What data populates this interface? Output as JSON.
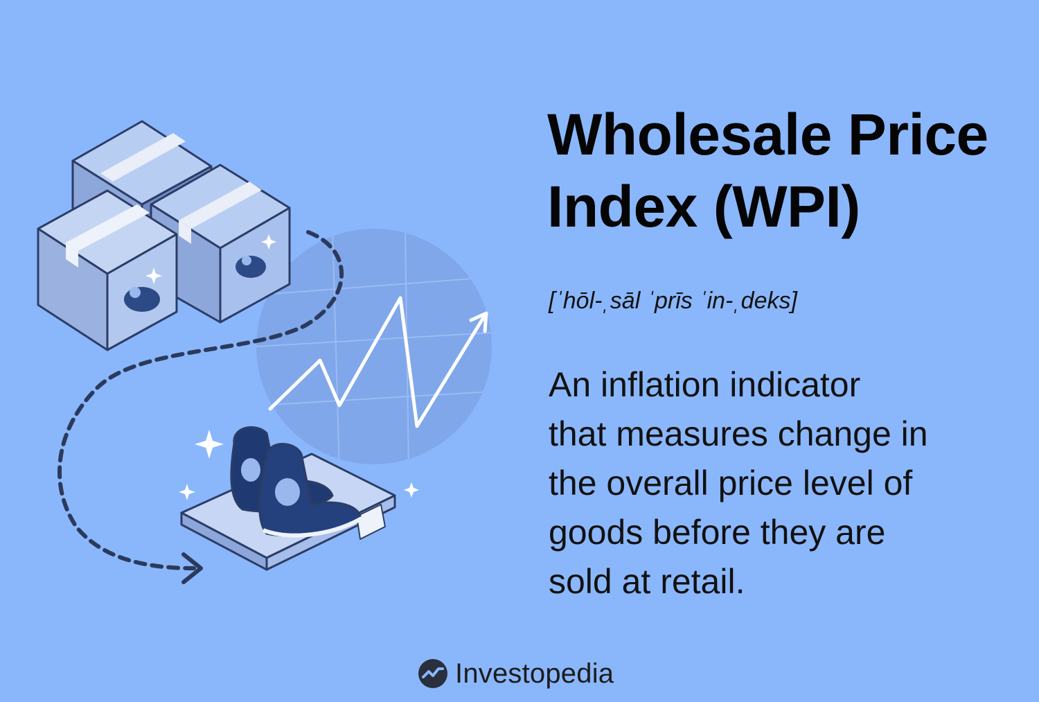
{
  "title": {
    "line1": "Wholesale Price",
    "line2": "Index (WPI)"
  },
  "pronunciation": "[ˈhōl-ˌsāl ˈprīs ˈin-ˌdeks]",
  "definition": {
    "line1": "An inflation indicator",
    "line2": "that measures change in",
    "line3": "the overall price level of",
    "line4": "goods before they are",
    "line5": "sold at retail."
  },
  "brand": {
    "name": "Investopedia",
    "icon": "investopedia-logo-icon"
  },
  "colors": {
    "background": "#8ab7fb",
    "box": "#b3c8ef",
    "box_dark": "#6f8cc7",
    "outline": "#2c3d66",
    "shoe": "#1f3a73",
    "arrow": "#ffffff",
    "text": "#0b0b0b"
  },
  "illustration": {
    "boxes": "stacked-shipping-boxes",
    "chart_circle": "globe-grid-circle",
    "arrow": "zigzag-up-trend-arrow",
    "dashed_path": "dashed-flow-arrow",
    "shoes": "sneakers-on-tray"
  }
}
